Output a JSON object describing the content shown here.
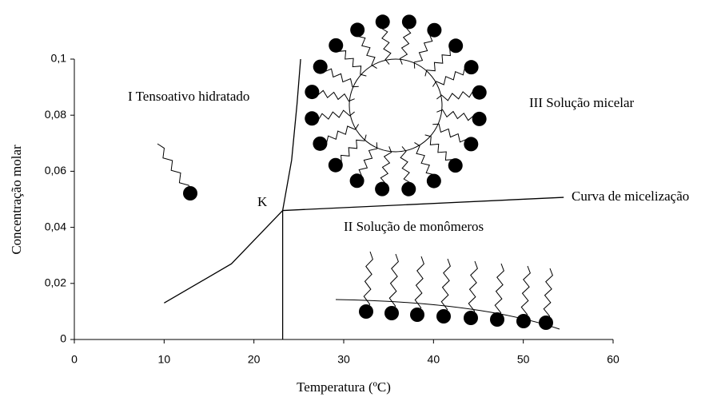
{
  "chart_data": {
    "type": "line",
    "x_label": "Temperatura  (ºC)",
    "y_label": "Concentração molar",
    "xlim": [
      0,
      60
    ],
    "xticks": [
      0,
      10,
      20,
      30,
      40,
      50,
      60
    ],
    "ylim": [
      0,
      0.1
    ],
    "yticks": [
      0,
      {
        "value": 0.02,
        "label": "0,02"
      },
      {
        "value": 0.04,
        "label": "0,04"
      },
      {
        "value": 0.06,
        "label": "0,06"
      },
      {
        "value": 0.08,
        "label": "0,08"
      },
      {
        "value": 0.1,
        "label": "0,1"
      }
    ],
    "series": [
      {
        "color": "#000",
        "x": [
          10,
          17.5,
          23.2,
          24.2,
          24.8,
          25.2
        ],
        "values": [
          0.013,
          0.027,
          0.046,
          0.064,
          0.084,
          0.1
        ]
      },
      {
        "color": "#000",
        "x": [
          23.2,
          54.5
        ],
        "values": [
          0.046,
          0.0507
        ]
      },
      {
        "color": "#000",
        "x": [
          23.2,
          23.2
        ],
        "values": [
          0,
          0.046
        ]
      }
    ],
    "annotations": [
      "I  Tensoativo hidratado",
      "III  Solução micelar",
      "II  Solução de monômeros",
      "K",
      "Curva de micelização"
    ]
  }
}
